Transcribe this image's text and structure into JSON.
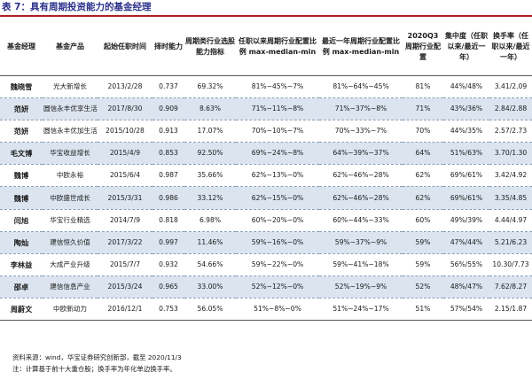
{
  "caption": "表 7：具有周期投资能力的基金经理",
  "colors": {
    "rule": "#b01f24",
    "caption": "#2a2f8a",
    "stripe": "#dbe4ef"
  },
  "headers": [
    "基金经理",
    "基金产品",
    "起始任职时间",
    "择时能力",
    "周期类行业选股能力指标",
    "任职以来周期行业配置比例 max-median-min",
    "最近一年周期行业配置比例 max-median-min",
    "2020Q3 周期行业配置",
    "集中度（任职以来/最近一年）",
    "换手率（任职以来/最近一年）"
  ],
  "rows": [
    {
      "manager": "魏晓雪",
      "product": "光大新增长",
      "start": "2013/2/28",
      "timing": "0.737",
      "selection": "69.32%",
      "since_tenure": "81%~45%~7%",
      "last_year": "81%~64%~45%",
      "q3": "81%",
      "concentration": "44%/48%",
      "turnover": "3.41/2.09"
    },
    {
      "manager": "范妍",
      "product": "圆信永丰优享生活",
      "start": "2017/8/30",
      "timing": "0.909",
      "selection": "8.63%",
      "since_tenure": "71%~11%~8%",
      "last_year": "71%~37%~8%",
      "q3": "71%",
      "concentration": "43%/36%",
      "turnover": "2.84/2.88"
    },
    {
      "manager": "范妍",
      "product": "圆信永丰优加生活",
      "start": "2015/10/28",
      "timing": "0.913",
      "selection": "17.07%",
      "since_tenure": "70%~10%~7%",
      "last_year": "70%~33%~7%",
      "q3": "70%",
      "concentration": "44%/35%",
      "turnover": "2.57/2.73"
    },
    {
      "manager": "毛文博",
      "product": "华宝收益增长",
      "start": "2015/4/9",
      "timing": "0.853",
      "selection": "92.50%",
      "since_tenure": "69%~24%~8%",
      "last_year": "64%~39%~37%",
      "q3": "64%",
      "concentration": "51%/63%",
      "turnover": "3.70/1.30"
    },
    {
      "manager": "魏博",
      "product": "中欧永裕",
      "start": "2015/6/4",
      "timing": "0.987",
      "selection": "35.66%",
      "since_tenure": "62%~13%~0%",
      "last_year": "62%~46%~28%",
      "q3": "62%",
      "concentration": "69%/61%",
      "turnover": "3.42/4.92"
    },
    {
      "manager": "魏博",
      "product": "中欧盛世成长",
      "start": "2015/3/31",
      "timing": "0.986",
      "selection": "33.12%",
      "since_tenure": "62%~15%~0%",
      "last_year": "62%~46%~28%",
      "q3": "62%",
      "concentration": "69%/61%",
      "turnover": "3.35/4.85"
    },
    {
      "manager": "闫旭",
      "product": "华宝行业精选",
      "start": "2014/7/9",
      "timing": "0.818",
      "selection": "6.98%",
      "since_tenure": "60%~20%~0%",
      "last_year": "60%~44%~33%",
      "q3": "60%",
      "concentration": "49%/39%",
      "turnover": "4.44/4.97"
    },
    {
      "manager": "陶灿",
      "product": "建信恒久价值",
      "start": "2017/3/22",
      "timing": "0.997",
      "selection": "11.46%",
      "since_tenure": "59%~16%~0%",
      "last_year": "59%~37%~9%",
      "q3": "59%",
      "concentration": "47%/44%",
      "turnover": "5.21/6.23"
    },
    {
      "manager": "李林益",
      "product": "大成产业升级",
      "start": "2015/7/7",
      "timing": "0.932",
      "selection": "54.66%",
      "since_tenure": "59%~22%~0%",
      "last_year": "59%~41%~18%",
      "q3": "59%",
      "concentration": "56%/55%",
      "turnover": "10.30/7.73"
    },
    {
      "manager": "邵卓",
      "product": "建信信息产业",
      "start": "2015/3/24",
      "timing": "0.965",
      "selection": "33.00%",
      "since_tenure": "52%~12%~0%",
      "last_year": "52%~19%~9%",
      "q3": "52%",
      "concentration": "48%/47%",
      "turnover": "7.62/8.27"
    },
    {
      "manager": "周蔚文",
      "product": "中欧新动力",
      "start": "2016/12/1",
      "timing": "0.753",
      "selection": "56.05%",
      "since_tenure": "51%~8%~0%",
      "last_year": "51%~24%~17%",
      "q3": "51%",
      "concentration": "57%/54%",
      "turnover": "2.15/1.87"
    }
  ],
  "notes": {
    "source": "资料来源：wind，华宝证券研究创新部，截至 2020/11/3",
    "remark": "注：计算基于前十大重仓股；换手率为年化单边换手率。"
  }
}
